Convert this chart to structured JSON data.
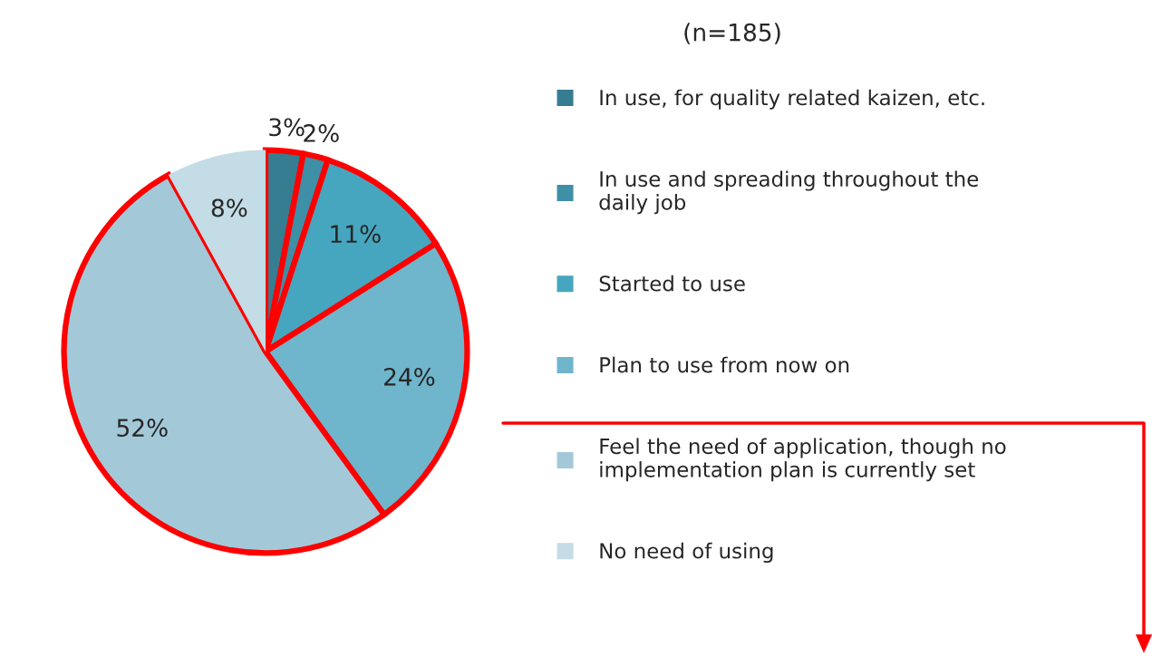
{
  "chart_data": {
    "type": "pie",
    "title": "(n=185)",
    "categories": [
      "In use, for quality related kaizen, etc.",
      "In use and spreading throughout the\ndaily job",
      "Started to use",
      "Plan to use from now on",
      "Feel the need of application, though no\nimplementation plan is currently set",
      "No need of using"
    ],
    "values": [
      3,
      2,
      11,
      24,
      52,
      8
    ],
    "colors": [
      "#367d91",
      "#3f8fa6",
      "#47a6bf",
      "#6fb5cc",
      "#a3c9d9",
      "#c3dce5"
    ],
    "value_labels": [
      "3%",
      "2%",
      "11%",
      "24%",
      "52%",
      "8%"
    ],
    "legend": "right"
  }
}
